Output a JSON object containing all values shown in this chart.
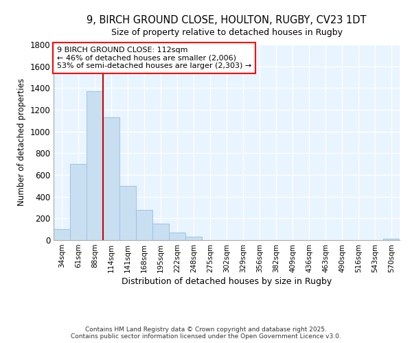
{
  "title_line1": "9, BIRCH GROUND CLOSE, HOULTON, RUGBY, CV23 1DT",
  "title_line2": "Size of property relative to detached houses in Rugby",
  "xlabel": "Distribution of detached houses by size in Rugby",
  "ylabel": "Number of detached properties",
  "annotation_line1": "9 BIRCH GROUND CLOSE: 112sqm",
  "annotation_line2": "← 46% of detached houses are smaller (2,006)",
  "annotation_line3": "53% of semi-detached houses are larger (2,303) →",
  "footer_line1": "Contains HM Land Registry data © Crown copyright and database right 2025.",
  "footer_line2": "Contains public sector information licensed under the Open Government Licence v3.0.",
  "bar_color": "#c8dff2",
  "bar_edge_color": "#a0c0e0",
  "vline_color": "#cc0000",
  "background_color": "#e8f4ff",
  "fig_background": "#ffffff",
  "categories": [
    "34sqm",
    "61sqm",
    "88sqm",
    "114sqm",
    "141sqm",
    "168sqm",
    "195sqm",
    "222sqm",
    "248sqm",
    "275sqm",
    "302sqm",
    "329sqm",
    "356sqm",
    "382sqm",
    "409sqm",
    "436sqm",
    "463sqm",
    "490sqm",
    "516sqm",
    "543sqm",
    "570sqm"
  ],
  "values": [
    100,
    700,
    1370,
    1130,
    500,
    280,
    150,
    70,
    30,
    0,
    0,
    0,
    0,
    0,
    0,
    0,
    0,
    0,
    0,
    0,
    15
  ],
  "vline_index": 3,
  "ylim": [
    0,
    1800
  ],
  "yticks": [
    0,
    200,
    400,
    600,
    800,
    1000,
    1200,
    1400,
    1600,
    1800
  ]
}
